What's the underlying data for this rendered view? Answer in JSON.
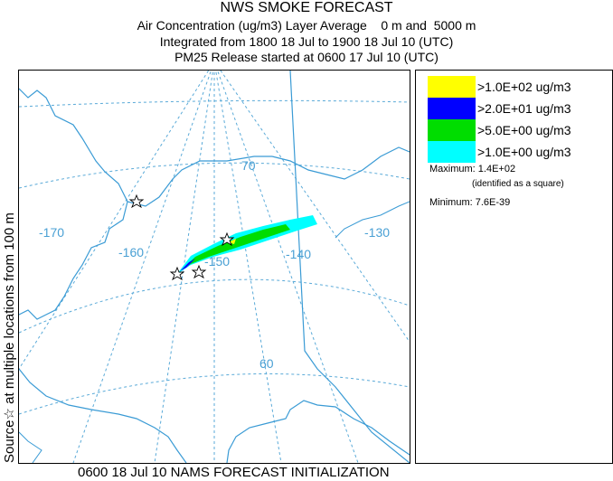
{
  "title": {
    "line1": "NWS SMOKE FORECAST",
    "line2": "Air Concentration (ug/m3) Layer Average    0 m and  5000 m",
    "line3": "Integrated from 1800 18 Jul to 1900 18 Jul 10 (UTC)",
    "line4": "PM25 Release started at 0600 17 Jul 10 (UTC)"
  },
  "side_label": "Source☆ at multiple locations  from   100 m",
  "bottom_label": "0600 18 Jul 10 NAMS FORECAST INITIALIZATION",
  "map": {
    "longitude_labels": [
      "-170",
      "-160",
      "-150",
      "-140",
      "-130"
    ],
    "latitude_labels": [
      "70",
      "60"
    ],
    "colors": {
      "coastline": "#3a9bd5",
      "grid": "#5aaad8",
      "border": "#3a9bd5"
    },
    "source_marker_icon": "star-outline-icon"
  },
  "legend": {
    "items": [
      {
        "label": ">1.0E+02 ug/m3",
        "color": "#ffff00"
      },
      {
        "label": ">2.0E+01 ug/m3",
        "color": "#0000ff"
      },
      {
        "label": ">5.0E+00 ug/m3",
        "color": "#00dd00"
      },
      {
        "label": ">1.0E+00 ug/m3",
        "color": "#00ffff"
      }
    ],
    "maximum_label": "Maximum: 1.4E+02",
    "maximum_note": "(identified as a square)",
    "minimum_label": "Minimum: 7.6E-39"
  }
}
